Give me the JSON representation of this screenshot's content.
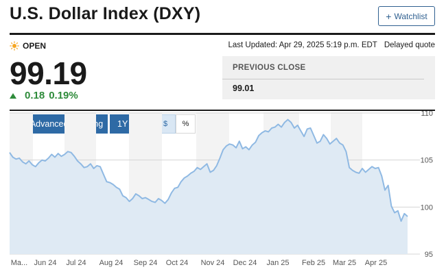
{
  "header": {
    "title": "U.S. Dollar Index (DXY)",
    "watchlist_plus": "+",
    "watchlist_label": "Watchlist"
  },
  "quote": {
    "status": "OPEN",
    "last_updated": "Last Updated: Apr 29, 2025 5:19 p.m. EDT",
    "delay_note": "Delayed quote",
    "price": "99.19",
    "change": "0.18",
    "change_percent": "0.19%",
    "change_color": "#2e8b3a",
    "previous_close_label": "PREVIOUS CLOSE",
    "previous_close": "99.01"
  },
  "toolbar": {
    "back_label": "‹",
    "advanced_label": "Advanced Charting",
    "range_label": "1Y",
    "dollar_label": "$",
    "percent_label": "%",
    "accent": "#2e6aa5"
  },
  "chart_data": {
    "type": "area",
    "line_color": "#8fb9e3",
    "fill_color": "#dfeaf4",
    "ylim": [
      95,
      110
    ],
    "y_ticks": [
      110,
      105,
      100,
      95
    ],
    "x_tick_labels": [
      "Ma...",
      "Jun 24",
      "Jul 24",
      "Aug 24",
      "Sep 24",
      "Oct 24",
      "Nov 24",
      "Dec 24",
      "Jan 25",
      "Feb 25",
      "Mar 25",
      "Apr 25"
    ],
    "grid": true,
    "values": [
      105.8,
      105.3,
      105.1,
      105.2,
      104.8,
      104.6,
      104.9,
      104.5,
      104.3,
      104.7,
      105.0,
      104.9,
      105.2,
      105.6,
      105.3,
      105.7,
      105.4,
      105.6,
      105.9,
      105.8,
      105.4,
      104.9,
      104.6,
      104.2,
      104.3,
      104.6,
      104.1,
      104.4,
      104.3,
      103.5,
      102.7,
      102.6,
      102.4,
      102.1,
      101.9,
      101.2,
      101.0,
      100.6,
      100.9,
      101.4,
      101.2,
      100.9,
      101.0,
      100.8,
      100.6,
      100.5,
      100.9,
      100.7,
      100.4,
      100.8,
      101.5,
      102.0,
      102.1,
      102.7,
      103.1,
      103.3,
      103.6,
      103.8,
      104.2,
      104.0,
      104.3,
      104.6,
      103.7,
      103.9,
      104.4,
      105.2,
      106.1,
      106.5,
      106.7,
      106.6,
      106.3,
      107.0,
      106.2,
      106.4,
      106.1,
      106.6,
      106.9,
      107.6,
      107.9,
      108.1,
      108.0,
      108.4,
      108.5,
      108.8,
      108.5,
      109.0,
      109.3,
      109.0,
      108.4,
      108.7,
      108.1,
      107.5,
      108.3,
      108.4,
      107.6,
      106.8,
      107.0,
      107.7,
      107.3,
      106.7,
      107.0,
      107.3,
      106.8,
      106.6,
      105.9,
      104.2,
      103.9,
      103.7,
      103.6,
      104.1,
      103.7,
      104.0,
      104.3,
      104.1,
      104.2,
      103.3,
      101.8,
      102.3,
      100.1,
      99.4,
      99.6,
      98.5,
      99.3,
      99.0
    ]
  }
}
